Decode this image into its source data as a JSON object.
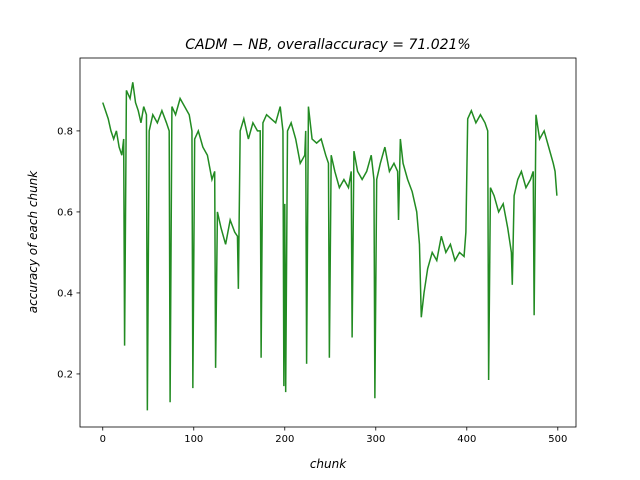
{
  "chart_data": {
    "type": "line",
    "title": "CADM − NB,  overallaccuracy  =  71.021%",
    "xlabel": "chunk",
    "ylabel": "accuracy of each chunk",
    "xlim": [
      -25,
      520
    ],
    "ylim": [
      0.069,
      0.98
    ],
    "xticks": [
      0,
      100,
      200,
      300,
      400,
      500
    ],
    "yticks": [
      0.2,
      0.4,
      0.6,
      0.8
    ],
    "grid": false,
    "series": [
      {
        "name": "accuracy",
        "color": "#228b22",
        "x": [
          0,
          3,
          6,
          9,
          12,
          15,
          18,
          21,
          23,
          24,
          26,
          30,
          33,
          36,
          39,
          42,
          45,
          48,
          49,
          51,
          55,
          60,
          65,
          70,
          73,
          74,
          76,
          80,
          85,
          90,
          95,
          98,
          99,
          101,
          105,
          110,
          115,
          120,
          123,
          124,
          126,
          130,
          135,
          140,
          145,
          148,
          149,
          151,
          155,
          160,
          165,
          170,
          173,
          174,
          176,
          180,
          185,
          190,
          195,
          198,
          199,
          200,
          201,
          203,
          207,
          212,
          217,
          222,
          223,
          224,
          226,
          230,
          235,
          240,
          245,
          248,
          249,
          251,
          255,
          260,
          265,
          270,
          273,
          274,
          276,
          280,
          285,
          290,
          295,
          298,
          299,
          301,
          305,
          310,
          315,
          320,
          324,
          325,
          327,
          330,
          335,
          340,
          345,
          348,
          350,
          353,
          357,
          362,
          367,
          372,
          377,
          382,
          387,
          392,
          397,
          399,
          401,
          405,
          410,
          415,
          420,
          423,
          424,
          426,
          430,
          435,
          440,
          445,
          449,
          450,
          452,
          456,
          460,
          465,
          470,
          473,
          474,
          476,
          480,
          485,
          490,
          495,
          497,
          499
        ],
        "values": [
          0.87,
          0.85,
          0.83,
          0.8,
          0.78,
          0.8,
          0.76,
          0.74,
          0.78,
          0.27,
          0.9,
          0.88,
          0.92,
          0.87,
          0.85,
          0.82,
          0.86,
          0.84,
          0.11,
          0.8,
          0.84,
          0.82,
          0.85,
          0.82,
          0.8,
          0.13,
          0.86,
          0.84,
          0.88,
          0.86,
          0.84,
          0.8,
          0.165,
          0.78,
          0.8,
          0.76,
          0.74,
          0.68,
          0.7,
          0.215,
          0.6,
          0.56,
          0.52,
          0.58,
          0.55,
          0.54,
          0.41,
          0.8,
          0.83,
          0.78,
          0.82,
          0.8,
          0.8,
          0.24,
          0.82,
          0.84,
          0.83,
          0.82,
          0.86,
          0.8,
          0.17,
          0.62,
          0.155,
          0.8,
          0.82,
          0.78,
          0.72,
          0.74,
          0.8,
          0.225,
          0.86,
          0.78,
          0.77,
          0.78,
          0.74,
          0.72,
          0.24,
          0.74,
          0.7,
          0.66,
          0.68,
          0.66,
          0.7,
          0.29,
          0.75,
          0.7,
          0.68,
          0.7,
          0.74,
          0.68,
          0.14,
          0.68,
          0.72,
          0.76,
          0.7,
          0.72,
          0.7,
          0.58,
          0.78,
          0.72,
          0.68,
          0.65,
          0.6,
          0.52,
          0.34,
          0.4,
          0.46,
          0.5,
          0.48,
          0.54,
          0.5,
          0.52,
          0.48,
          0.5,
          0.49,
          0.55,
          0.83,
          0.85,
          0.82,
          0.84,
          0.82,
          0.8,
          0.185,
          0.66,
          0.64,
          0.6,
          0.62,
          0.56,
          0.5,
          0.42,
          0.64,
          0.68,
          0.7,
          0.66,
          0.68,
          0.7,
          0.345,
          0.84,
          0.78,
          0.8,
          0.76,
          0.72,
          0.7,
          0.64
        ]
      }
    ]
  }
}
